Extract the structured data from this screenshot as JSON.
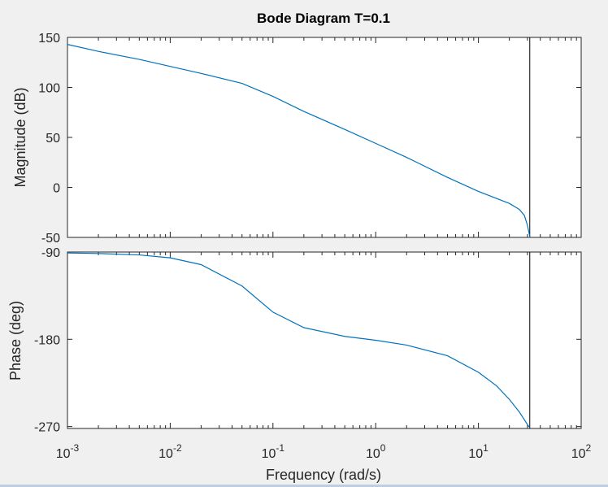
{
  "chart_data": {
    "type": "line",
    "title": "Bode Diagram T=0.1",
    "xlabel": "Frequency  (rad/s)",
    "xscale": "log",
    "xlim": [
      0.001,
      100
    ],
    "x_ticks": [
      {
        "value": 0.001,
        "base": "10",
        "exp": "-3"
      },
      {
        "value": 0.01,
        "base": "10",
        "exp": "-2"
      },
      {
        "value": 0.1,
        "base": "10",
        "exp": "-1"
      },
      {
        "value": 1,
        "base": "10",
        "exp": "0"
      },
      {
        "value": 10,
        "base": "10",
        "exp": "1"
      },
      {
        "value": 100,
        "base": "10",
        "exp": "2"
      }
    ],
    "line_color": "#0072bd",
    "vertical_line_x": 31.6,
    "panels": [
      {
        "name": "magnitude",
        "ylabel": "Magnitude (dB)",
        "ylim": [
          -50,
          150
        ],
        "yticks": [
          150,
          100,
          50,
          0,
          -50
        ],
        "x": [
          0.001,
          0.002,
          0.005,
          0.01,
          0.02,
          0.05,
          0.1,
          0.2,
          0.5,
          1,
          2,
          5,
          10,
          20,
          25,
          28,
          30,
          31,
          31.5,
          31.6
        ],
        "y": [
          143,
          136,
          128,
          121,
          114,
          104,
          91,
          76,
          58,
          44,
          30,
          10,
          -4,
          -16,
          -22,
          -28,
          -38,
          -45,
          -48,
          -50
        ]
      },
      {
        "name": "phase",
        "ylabel": "Phase (deg)",
        "ylim": [
          -272,
          -90
        ],
        "yticks": [
          -90,
          -180,
          -270
        ],
        "x": [
          0.001,
          0.002,
          0.005,
          0.01,
          0.02,
          0.05,
          0.1,
          0.2,
          0.5,
          1,
          2,
          5,
          10,
          15,
          20,
          25,
          28,
          30,
          31,
          31.6
        ],
        "y": [
          -91,
          -91.5,
          -93,
          -96,
          -103,
          -125,
          -152,
          -168,
          -177,
          -181,
          -186,
          -197,
          -214,
          -228,
          -242,
          -255,
          -263,
          -268,
          -270,
          -270
        ]
      }
    ]
  }
}
